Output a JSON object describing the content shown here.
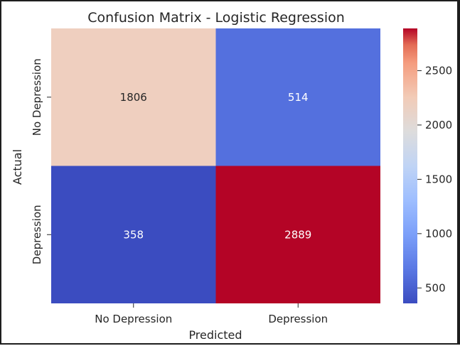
{
  "chart_data": {
    "type": "heatmap",
    "title": "Confusion Matrix - Logistic Regression",
    "xlabel": "Predicted",
    "ylabel": "Actual",
    "x_categories": [
      "No Depression",
      "Depression"
    ],
    "y_categories": [
      "No Depression",
      "Depression"
    ],
    "values": [
      [
        1806,
        514
      ],
      [
        358,
        2889
      ]
    ],
    "colormap": "coolwarm",
    "colorbar": {
      "min": 358,
      "max": 2889,
      "ticks": [
        500,
        1000,
        1500,
        2000,
        2500
      ],
      "tick_labels": [
        "500",
        "1000",
        "1500",
        "2000",
        "2500"
      ]
    },
    "colors": {
      "cell_1806": "#efcfbf",
      "cell_514": "#5470de",
      "cell_358": "#3b4cc0",
      "cell_2889": "#b40426",
      "text_light_bg": "#262626",
      "text_dark_bg": "#ffffff"
    }
  }
}
